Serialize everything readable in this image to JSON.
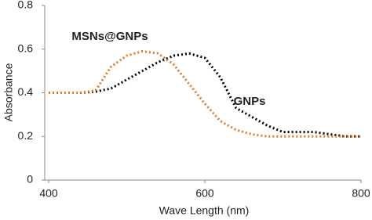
{
  "chart_data": {
    "type": "line",
    "x_label": "Wave Length (nm)",
    "y_label": "Absorbance",
    "x": [
      400,
      420,
      440,
      460,
      480,
      500,
      520,
      540,
      560,
      580,
      600,
      620,
      640,
      660,
      680,
      700,
      720,
      740,
      760,
      780,
      800
    ],
    "series": [
      {
        "name": "GNPs",
        "color": "#000000",
        "values": [
          0.4,
          0.4,
          0.4,
          0.405,
          0.42,
          0.46,
          0.5,
          0.54,
          0.57,
          0.58,
          0.56,
          0.47,
          0.33,
          0.29,
          0.25,
          0.22,
          0.22,
          0.22,
          0.21,
          0.2,
          0.2
        ]
      },
      {
        "name": "MSNs@GNPs",
        "color": "#e07b2a",
        "values": [
          0.4,
          0.4,
          0.4,
          0.41,
          0.52,
          0.57,
          0.59,
          0.58,
          0.53,
          0.44,
          0.35,
          0.27,
          0.23,
          0.21,
          0.2,
          0.2,
          0.2,
          0.2,
          0.2,
          0.2,
          0.2
        ]
      }
    ],
    "xlim": [
      400,
      800
    ],
    "xticks": [
      400,
      600,
      800
    ],
    "ylim": [
      0,
      0.8
    ],
    "yticks": [
      0,
      0.2,
      0.4,
      0.6,
      0.8
    ]
  }
}
